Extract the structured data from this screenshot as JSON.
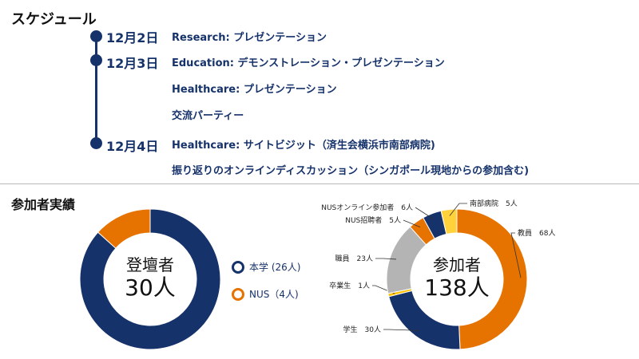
{
  "schedule": {
    "title": "スケジュール",
    "dates": [
      "12月2日",
      "12月3日",
      "12月4日"
    ],
    "events": [
      "Research: プレゼンテーション",
      "Education: デモンストレーション・プレゼンテーション",
      "Healthcare: プレゼンテーション",
      "交流パーティー",
      "Healthcare: サイトビジット（済生会横浜市南部病院)",
      "振り返りのオンラインディスカッション（シンガポール現地からの参加含む)"
    ]
  },
  "results": {
    "title": "参加者実績",
    "registered": {
      "center_title": "登壇者",
      "center_value": "30人",
      "legend": [
        {
          "label": "本学 (26人)",
          "color": "#16326b"
        },
        {
          "label": "NUS（4人)",
          "color": "#e67300"
        }
      ]
    },
    "participants": {
      "center_title": "参加者",
      "center_value": "138人"
    }
  },
  "chart_data": [
    {
      "type": "pie",
      "categories": [
        "本学",
        "NUS"
      ],
      "values": [
        26,
        4
      ],
      "colors": [
        "#16326b",
        "#e67300"
      ]
    },
    {
      "type": "pie",
      "categories": [
        "教員",
        "学生",
        "卒業生",
        "職員",
        "NUS招聘者",
        "NUSオンライン参加者",
        "南部病院"
      ],
      "values": [
        68,
        30,
        1,
        23,
        5,
        6,
        5
      ],
      "slice_labels": [
        "教員　68人",
        "学生　30人",
        "卒業生　1人",
        "職員　23人",
        "NUS招聘者　5人",
        "NUSオンライン参加者　6人",
        "南部病院　5人"
      ],
      "colors": [
        "#e67300",
        "#16326b",
        "#ffc000",
        "#b4b4b4",
        "#e67300",
        "#16326b",
        "#ffd23c"
      ]
    }
  ]
}
